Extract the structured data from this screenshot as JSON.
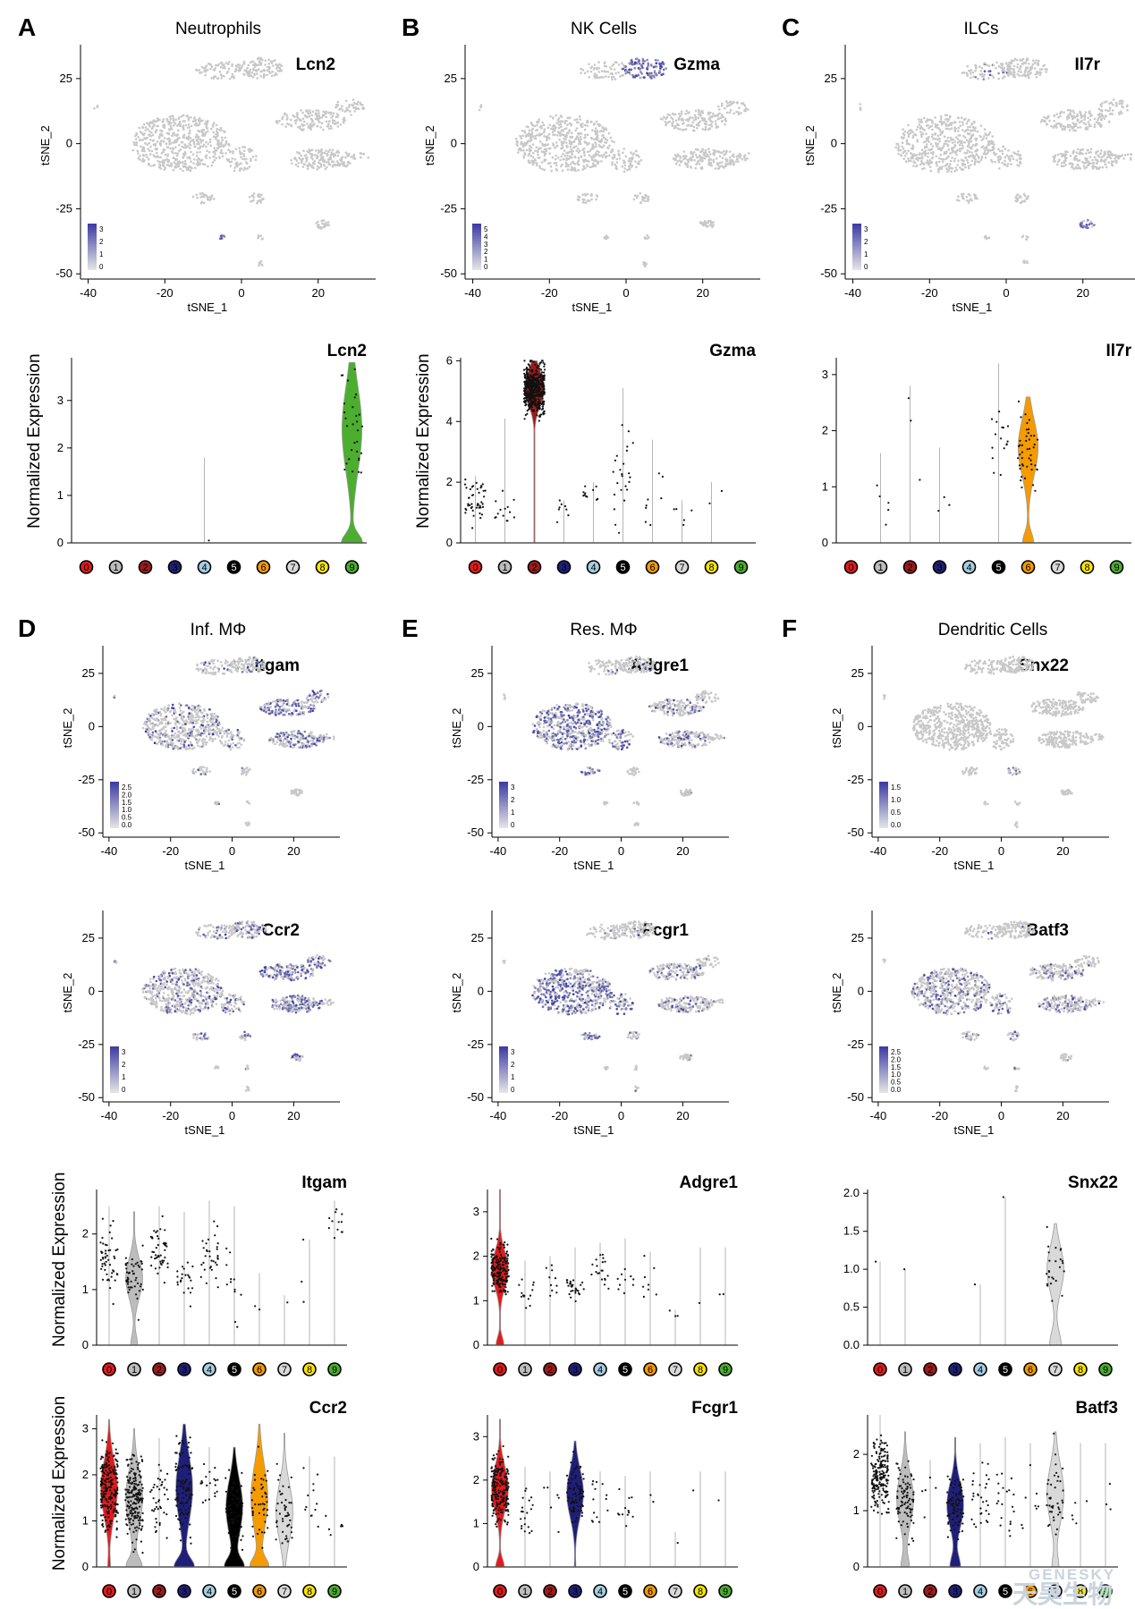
{
  "colors": {
    "low": "#c8c8c8",
    "high": "#3b3aa3",
    "violin_edge": "#9a9a9a",
    "clusters": [
      "#e31a1c",
      "#bdbdbd",
      "#a11a1a",
      "#1f1f7a",
      "#a6cee3",
      "#000000",
      "#f59b00",
      "#d9d9d9",
      "#ffe600",
      "#4cae2e"
    ],
    "cluster_text": [
      "#000000",
      "#000000",
      "#000000",
      "#000000",
      "#000000",
      "#ffffff",
      "#000000",
      "#000000",
      "#000000",
      "#000000"
    ]
  },
  "common": {
    "tsne_xlabel": "tSNE_1",
    "tsne_ylabel": "tSNE_2",
    "violin_ylabel": "Normalized Expression",
    "cluster_labels": [
      "0",
      "1",
      "2",
      "3",
      "4",
      "5",
      "6",
      "7",
      "8",
      "9"
    ]
  },
  "panels": [
    {
      "letter": "A",
      "title": "Neutrophils"
    },
    {
      "letter": "B",
      "title": "NK Cells"
    },
    {
      "letter": "C",
      "title": "ILCs"
    },
    {
      "letter": "D",
      "title": "Inf. MΦ"
    },
    {
      "letter": "E",
      "title": "Res. MΦ"
    },
    {
      "letter": "F",
      "title": "Dendritic Cells"
    }
  ],
  "chart_data": [
    {
      "type": "scatter",
      "panel": "A",
      "gene": "Lcn2",
      "xlabel": "tSNE_1",
      "ylabel": "tSNE_2",
      "xlim": [
        -42,
        35
      ],
      "ylim": [
        -52,
        38
      ],
      "xticks": [
        -40,
        -20,
        0,
        20
      ],
      "yticks": [
        25,
        0,
        -25,
        -50
      ],
      "legend_ticks": [
        "3",
        "2",
        "1",
        "0"
      ],
      "highlight_clusters": [
        "neutrophil"
      ]
    },
    {
      "type": "scatter",
      "panel": "B",
      "gene": "Gzma",
      "xlabel": "tSNE_1",
      "ylabel": "tSNE_2",
      "xlim": [
        -42,
        35
      ],
      "ylim": [
        -52,
        38
      ],
      "xticks": [
        -40,
        -20,
        0,
        20
      ],
      "yticks": [
        25,
        0,
        -25,
        -50
      ],
      "legend_ticks": [
        "5",
        "4",
        "3",
        "2",
        "1",
        "0"
      ],
      "highlight_clusters": [
        "nk"
      ]
    },
    {
      "type": "scatter",
      "panel": "C",
      "gene": "Il7r",
      "xlabel": "tSNE_1",
      "ylabel": "tSNE_2",
      "xlim": [
        -42,
        35
      ],
      "ylim": [
        -52,
        38
      ],
      "xticks": [
        -40,
        -20,
        0,
        20
      ],
      "yticks": [
        25,
        0,
        -25,
        -50
      ],
      "legend_ticks": [
        "3",
        "2",
        "1",
        "0"
      ],
      "highlight_clusters": [
        "ilc"
      ]
    },
    {
      "type": "violin",
      "panel": "A",
      "gene": "Lcn2",
      "ylabel": "Normalized Expression",
      "categories": [
        "0",
        "1",
        "2",
        "3",
        "4",
        "5",
        "6",
        "7",
        "8",
        "9"
      ],
      "ylim": [
        0,
        3.9
      ],
      "yticks": [
        0,
        1,
        2,
        3
      ],
      "filled": [
        9
      ],
      "max": [
        0,
        0,
        0,
        0,
        1.8,
        0,
        0,
        0,
        0,
        3.8
      ],
      "center": [
        0,
        0,
        0,
        0,
        0,
        0,
        0,
        0,
        0,
        2.4
      ],
      "spread": [
        0,
        0,
        0,
        0,
        0,
        0,
        0,
        0,
        0,
        0.9
      ],
      "zero_bulb": [
        0,
        0,
        0,
        0,
        0,
        0,
        0,
        0,
        0,
        0.85
      ],
      "npts": [
        0,
        0,
        0,
        0,
        1,
        0,
        0,
        0,
        0,
        30
      ]
    },
    {
      "type": "violin",
      "panel": "B",
      "gene": "Gzma",
      "ylabel": "Normalized Expression",
      "categories": [
        "0",
        "1",
        "2",
        "3",
        "4",
        "5",
        "6",
        "7",
        "8",
        "9"
      ],
      "ylim": [
        0,
        6.1
      ],
      "yticks": [
        0,
        2,
        4,
        6
      ],
      "filled": [
        2
      ],
      "max": [
        2.2,
        4.1,
        6.0,
        1.4,
        2.0,
        5.1,
        3.4,
        1.4,
        2.0,
        0
      ],
      "center": [
        1.4,
        1.1,
        5.1,
        1.1,
        1.6,
        2.5,
        1.5,
        0.9,
        1.6,
        0
      ],
      "spread": [
        0.5,
        0.4,
        0.55,
        0.3,
        0.3,
        1.2,
        0.8,
        0.3,
        0.3,
        0
      ],
      "zero_bulb": [
        0,
        0,
        0.03,
        0,
        0,
        0,
        0,
        0,
        0,
        0
      ],
      "npts": [
        45,
        14,
        500,
        8,
        11,
        24,
        8,
        5,
        2,
        0
      ]
    },
    {
      "type": "violin",
      "panel": "C",
      "gene": "Il7r",
      "ylabel": "",
      "categories": [
        "0",
        "1",
        "2",
        "3",
        "4",
        "5",
        "6",
        "7",
        "8",
        "9"
      ],
      "ylim": [
        0,
        3.3
      ],
      "yticks": [
        0,
        1,
        2,
        3
      ],
      "filled": [
        6
      ],
      "max": [
        0,
        1.6,
        2.8,
        1.7,
        0,
        3.2,
        2.6,
        0,
        0,
        0
      ],
      "center": [
        0,
        1.0,
        2.0,
        1.0,
        0,
        1.8,
        1.7,
        0,
        0,
        0
      ],
      "spread": [
        0,
        0.5,
        0.8,
        0.6,
        0,
        0.4,
        0.5,
        0,
        0,
        0
      ],
      "zero_bulb": [
        0,
        0,
        0,
        0,
        0,
        0,
        0.45,
        0,
        0,
        0
      ],
      "npts": [
        0,
        5,
        3,
        3,
        0,
        16,
        45,
        0,
        0,
        0
      ]
    },
    {
      "type": "scatter",
      "panel": "D",
      "gene": "Itgam",
      "xlabel": "tSNE_1",
      "ylabel": "tSNE_2",
      "xlim": [
        -42,
        35
      ],
      "ylim": [
        -52,
        38
      ],
      "xticks": [
        -40,
        -20,
        0,
        20
      ],
      "yticks": [
        25,
        0,
        -25,
        -50
      ],
      "legend_ticks": [
        "2.5",
        "2.0",
        "1.5",
        "1.0",
        "0.5",
        "0.0"
      ],
      "highlight_clusters": [
        "broad_light",
        "right_upper",
        "right_lower"
      ]
    },
    {
      "type": "scatter",
      "panel": "E",
      "gene": "Adgre1",
      "xlabel": "tSNE_1",
      "ylabel": "tSNE_2",
      "xlim": [
        -42,
        35
      ],
      "ylim": [
        -52,
        38
      ],
      "xticks": [
        -40,
        -20,
        0,
        20
      ],
      "yticks": [
        25,
        0,
        -25,
        -50
      ],
      "legend_ticks": [
        "3",
        "2",
        "1",
        "0"
      ],
      "highlight_clusters": [
        "main_left"
      ]
    },
    {
      "type": "scatter",
      "panel": "F",
      "gene": "Snx22",
      "xlabel": "tSNE_1",
      "ylabel": "tSNE_2",
      "xlim": [
        -42,
        35
      ],
      "ylim": [
        -52,
        38
      ],
      "xticks": [
        -40,
        -20,
        0,
        20
      ],
      "yticks": [
        25,
        0,
        -25,
        -50
      ],
      "legend_ticks": [
        "1.5",
        "1.0",
        "0.5",
        "0.0"
      ],
      "highlight_clusters": [
        "small_dc"
      ]
    },
    {
      "type": "scatter",
      "panel": "D",
      "gene": "Ccr2",
      "xlabel": "tSNE_1",
      "ylabel": "tSNE_2",
      "xlim": [
        -42,
        35
      ],
      "ylim": [
        -52,
        38
      ],
      "xticks": [
        -40,
        -20,
        0,
        20
      ],
      "yticks": [
        25,
        0,
        -25,
        -50
      ],
      "legend_ticks": [
        "3",
        "2",
        "1",
        "0"
      ],
      "highlight_clusters": [
        "broad",
        "right_upper",
        "right_lower",
        "top"
      ]
    },
    {
      "type": "scatter",
      "panel": "E",
      "gene": "Fcgr1",
      "xlabel": "tSNE_1",
      "ylabel": "tSNE_2",
      "xlim": [
        -42,
        35
      ],
      "ylim": [
        -52,
        38
      ],
      "xticks": [
        -40,
        -20,
        0,
        20
      ],
      "yticks": [
        25,
        0,
        -25,
        -50
      ],
      "legend_ticks": [
        "3",
        "2",
        "1",
        "0"
      ],
      "highlight_clusters": [
        "main_left"
      ]
    },
    {
      "type": "scatter",
      "panel": "F",
      "gene": "Batf3",
      "xlabel": "tSNE_1",
      "ylabel": "tSNE_2",
      "xlim": [
        -42,
        35
      ],
      "ylim": [
        -52,
        38
      ],
      "xticks": [
        -40,
        -20,
        0,
        20
      ],
      "yticks": [
        25,
        0,
        -25,
        -50
      ],
      "legend_ticks": [
        "2.5",
        "2.0",
        "1.5",
        "1.0",
        "0.5",
        "0.0"
      ],
      "highlight_clusters": [
        "broad",
        "right_lower"
      ]
    },
    {
      "type": "violin",
      "panel": "D",
      "gene": "Itgam",
      "ylabel": "Normalized Expression",
      "categories": [
        "0",
        "1",
        "2",
        "3",
        "4",
        "5",
        "6",
        "7",
        "8",
        "9"
      ],
      "ylim": [
        0,
        2.8
      ],
      "yticks": [
        0,
        1,
        2
      ],
      "filled": [
        1
      ],
      "max": [
        2.5,
        2.4,
        2.5,
        2.4,
        2.6,
        2.5,
        1.3,
        0.9,
        1.9,
        2.6
      ],
      "center": [
        1.5,
        1.2,
        1.7,
        1.2,
        1.6,
        1.1,
        0.7,
        0.6,
        1.2,
        2.1
      ],
      "spread": [
        0.45,
        0.35,
        0.35,
        0.3,
        0.4,
        0.5,
        0.4,
        0.2,
        0.4,
        0.3
      ],
      "zero_bulb": [
        0,
        0.32,
        0,
        0,
        0,
        0,
        0,
        0,
        0,
        0
      ],
      "npts": [
        50,
        50,
        45,
        22,
        32,
        12,
        2,
        1,
        3,
        12
      ]
    },
    {
      "type": "violin",
      "panel": "E",
      "gene": "Adgre1",
      "ylabel": "",
      "categories": [
        "0",
        "1",
        "2",
        "3",
        "4",
        "5",
        "6",
        "7",
        "8",
        "9"
      ],
      "ylim": [
        0,
        3.5
      ],
      "yticks": [
        0,
        1,
        2,
        3
      ],
      "filled": [
        0
      ],
      "max": [
        3.5,
        1.9,
        2.0,
        2.2,
        2.3,
        2.4,
        2.1,
        0.8,
        2.2,
        2.2
      ],
      "center": [
        1.7,
        1.2,
        1.4,
        1.3,
        1.7,
        1.3,
        1.4,
        0.7,
        1.3,
        1.3
      ],
      "spread": [
        0.4,
        0.3,
        0.3,
        0.2,
        0.3,
        0.4,
        0.4,
        0.1,
        0.5,
        0.5
      ],
      "zero_bulb": [
        0.38,
        0,
        0,
        0,
        0,
        0,
        0,
        0,
        0,
        0
      ],
      "npts": [
        180,
        14,
        10,
        30,
        20,
        10,
        8,
        3,
        1,
        2
      ]
    },
    {
      "type": "violin",
      "panel": "F",
      "gene": "Snx22",
      "ylabel": "",
      "categories": [
        "0",
        "1",
        "2",
        "3",
        "4",
        "5",
        "6",
        "7",
        "8",
        "9"
      ],
      "ylim": [
        0,
        2.05
      ],
      "yticks": [
        0,
        0.5,
        1.0,
        1.5,
        2.0
      ],
      "ytick_labels": [
        "0.0",
        "0.5",
        "1.0",
        "1.5",
        "2.0"
      ],
      "filled": [
        7
      ],
      "max": [
        1.1,
        1.0,
        0,
        0,
        0.8,
        1.95,
        0,
        1.6,
        0,
        0
      ],
      "center": [
        1.1,
        1.0,
        0,
        0,
        0.8,
        1.9,
        0,
        1.0,
        0,
        0
      ],
      "spread": [
        0,
        0,
        0,
        0,
        0,
        0,
        0,
        0.3,
        0,
        0
      ],
      "zero_bulb": [
        0,
        0,
        0,
        0,
        0,
        0,
        0,
        0.55,
        0,
        0
      ],
      "npts": [
        1,
        1,
        0,
        0,
        1,
        1,
        0,
        25,
        0,
        0
      ]
    },
    {
      "type": "violin",
      "panel": "D",
      "gene": "Ccr2",
      "ylabel": "Normalized Expression",
      "categories": [
        "0",
        "1",
        "2",
        "3",
        "4",
        "5",
        "6",
        "7",
        "8",
        "9"
      ],
      "ylim": [
        0,
        3.3
      ],
      "yticks": [
        0,
        1,
        2,
        3
      ],
      "filled": [
        0,
        1,
        3,
        5,
        6,
        7
      ],
      "max": [
        3.2,
        3.0,
        2.8,
        3.1,
        2.6,
        2.6,
        3.1,
        2.9,
        2.4,
        2.4
      ],
      "center": [
        1.7,
        1.5,
        1.4,
        1.7,
        1.8,
        1.3,
        1.5,
        1.2,
        1.4,
        1.0
      ],
      "spread": [
        0.6,
        0.6,
        0.6,
        0.7,
        0.5,
        0.6,
        0.7,
        0.6,
        0.5,
        0.6
      ],
      "zero_bulb": [
        0.12,
        0.75,
        0,
        0.95,
        0,
        0.9,
        0.85,
        0,
        0,
        0
      ],
      "npts": [
        220,
        200,
        40,
        110,
        20,
        75,
        45,
        45,
        12,
        6
      ]
    },
    {
      "type": "violin",
      "panel": "E",
      "gene": "Fcgr1",
      "ylabel": "",
      "categories": [
        "0",
        "1",
        "2",
        "3",
        "4",
        "5",
        "6",
        "7",
        "8",
        "9"
      ],
      "ylim": [
        0,
        3.5
      ],
      "yticks": [
        0,
        1,
        2,
        3
      ],
      "filled": [
        0,
        3
      ],
      "max": [
        3.4,
        2.3,
        2.2,
        2.9,
        2.2,
        2.1,
        2.2,
        0.8,
        2.2,
        2.2
      ],
      "center": [
        1.8,
        1.3,
        1.4,
        1.7,
        1.6,
        1.3,
        1.4,
        0.6,
        1.3,
        1.3
      ],
      "spread": [
        0.5,
        0.4,
        0.4,
        0.55,
        0.4,
        0.4,
        0.4,
        0.1,
        0.4,
        0.4
      ],
      "zero_bulb": [
        0.42,
        0,
        0,
        0.06,
        0,
        0,
        0,
        0,
        0,
        0
      ],
      "npts": [
        200,
        20,
        6,
        80,
        14,
        12,
        2,
        1,
        1,
        1
      ]
    },
    {
      "type": "violin",
      "panel": "F",
      "gene": "Batf3",
      "ylabel": "",
      "categories": [
        "0",
        "1",
        "2",
        "3",
        "4",
        "5",
        "6",
        "7",
        "8",
        "9"
      ],
      "ylim": [
        0,
        2.7
      ],
      "yticks": [
        0,
        1,
        2
      ],
      "filled": [
        1,
        3,
        7
      ],
      "max": [
        2.7,
        2.4,
        1.9,
        2.3,
        2.2,
        2.3,
        2.2,
        2.4,
        2.2,
        2.2
      ],
      "center": [
        1.6,
        1.2,
        1.3,
        1.1,
        1.2,
        1.1,
        1.0,
        1.3,
        1.1,
        1.2
      ],
      "spread": [
        0.45,
        0.45,
        0.3,
        0.4,
        0.4,
        0.4,
        0.4,
        0.5,
        0.4,
        0.5
      ],
      "zero_bulb": [
        0,
        0.38,
        0,
        0.5,
        0,
        0,
        0,
        0.3,
        0,
        0
      ],
      "npts": [
        200,
        90,
        5,
        80,
        30,
        20,
        8,
        40,
        5,
        3
      ]
    }
  ],
  "watermark": {
    "en": "GENESKY",
    "cn": "天昊生物"
  }
}
